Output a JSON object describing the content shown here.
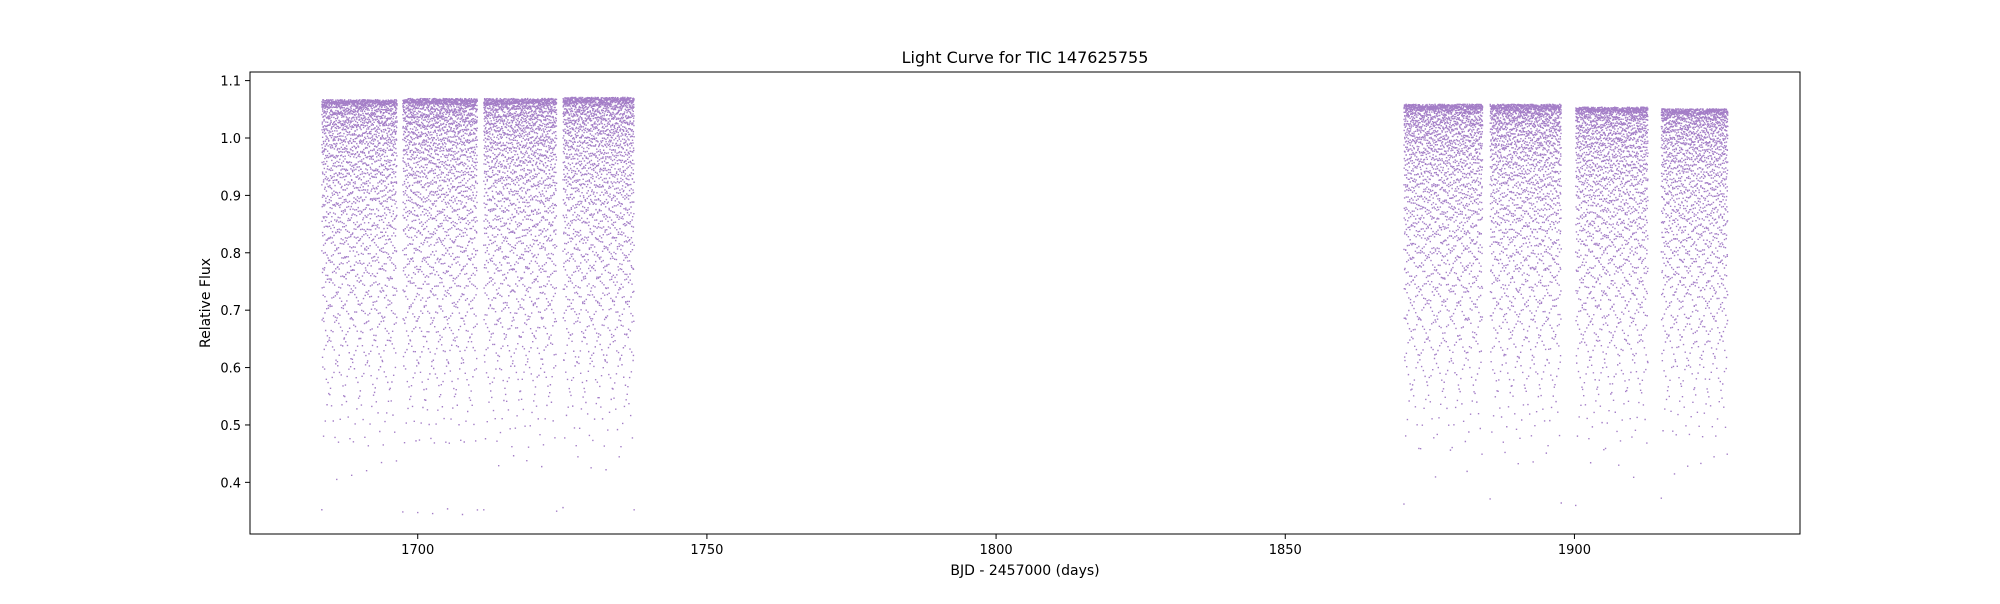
{
  "chart_data": {
    "type": "scatter",
    "title": "Light Curve for TIC 147625755",
    "xlabel": "BJD - 2457000 (days)",
    "ylabel": "Relative Flux",
    "xlim": [
      1671,
      1939
    ],
    "ylim": [
      0.31,
      1.115
    ],
    "xticks": [
      1700,
      1750,
      1800,
      1850,
      1900
    ],
    "yticks": [
      0.4,
      0.5,
      0.6,
      0.7,
      0.8,
      0.9,
      1.0,
      1.1
    ],
    "grid": false,
    "legend": "none",
    "marker_color": "#9467bd",
    "segments": [
      {
        "x_start": 1683.3,
        "x_end": 1696.3,
        "flux_min": 0.355,
        "flux_max": 1.068
      },
      {
        "x_start": 1697.3,
        "x_end": 1710.2,
        "flux_min": 0.35,
        "flux_max": 1.07
      },
      {
        "x_start": 1711.3,
        "x_end": 1723.9,
        "flux_min": 0.355,
        "flux_max": 1.07
      },
      {
        "x_start": 1725.0,
        "x_end": 1737.3,
        "flux_min": 0.355,
        "flux_max": 1.072
      },
      {
        "x_start": 1870.4,
        "x_end": 1884.0,
        "flux_min": 0.368,
        "flux_max": 1.06
      },
      {
        "x_start": 1885.3,
        "x_end": 1897.6,
        "flux_min": 0.368,
        "flux_max": 1.06
      },
      {
        "x_start": 1900.1,
        "x_end": 1912.6,
        "flux_min": 0.365,
        "flux_max": 1.055
      },
      {
        "x_start": 1914.9,
        "x_end": 1926.4,
        "flux_min": 0.368,
        "flux_max": 1.052
      }
    ]
  }
}
